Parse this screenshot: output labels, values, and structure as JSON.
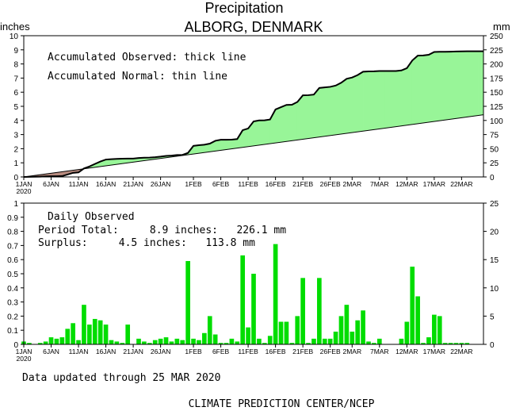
{
  "header": {
    "title": "Precipitation",
    "station": "ALBORG, DENMARK",
    "left_unit": "inches",
    "right_unit": "mm"
  },
  "colors": {
    "surplus": "#98f598",
    "deficit": "#b98c80",
    "bars": "#00dd00"
  },
  "chart_data": [
    {
      "type": "area",
      "panel": "accumulated",
      "annotations": [
        "Accumulated Observed: thick line",
        "Accumulated Normal: thin line"
      ],
      "ylabel": "inches",
      "y2label": "mm",
      "ylim": [
        0,
        10
      ],
      "y2lim": [
        0,
        250
      ],
      "yticks": [
        "0",
        "1",
        "2",
        "3",
        "4",
        "5",
        "6",
        "7",
        "8",
        "9",
        "10"
      ],
      "y2ticks": [
        "0",
        "25",
        "50",
        "75",
        "100",
        "125",
        "150",
        "175",
        "200",
        "225",
        "250"
      ],
      "x_day_range": [
        1,
        85
      ],
      "xticks": [
        "1JAN",
        "6JAN",
        "11JAN",
        "16JAN",
        "21JAN",
        "26JAN",
        "1FEB",
        "6FEB",
        "11FEB",
        "16FEB",
        "21FEB",
        "26FEB",
        "2MAR",
        "7MAR",
        "12MAR",
        "17MAR",
        "22MAR"
      ],
      "xtick_days": [
        1,
        6,
        11,
        16,
        21,
        26,
        32,
        37,
        42,
        47,
        52,
        57,
        61,
        66,
        71,
        76,
        81
      ],
      "year_label": "2020",
      "series": [
        {
          "name": "Accumulated Observed",
          "style": "thick",
          "points": [
            [
              1,
              0
            ],
            [
              2,
              0.01
            ],
            [
              4,
              0.02
            ],
            [
              5,
              0.04
            ],
            [
              6,
              0.05
            ],
            [
              7,
              0.05
            ],
            [
              8,
              0.06
            ],
            [
              9,
              0.17
            ],
            [
              10,
              0.29
            ],
            [
              11,
              0.32
            ],
            [
              12,
              0.6
            ],
            [
              13,
              0.74
            ],
            [
              14,
              0.92
            ],
            [
              15,
              1.09
            ],
            [
              16,
              1.23
            ],
            [
              17,
              1.26
            ],
            [
              18,
              1.28
            ],
            [
              19,
              1.29
            ],
            [
              20,
              1.3
            ],
            [
              21,
              1.3
            ],
            [
              22,
              1.34
            ],
            [
              23,
              1.36
            ],
            [
              24,
              1.37
            ],
            [
              25,
              1.4
            ],
            [
              26,
              1.44
            ],
            [
              27,
              1.49
            ],
            [
              28,
              1.51
            ],
            [
              29,
              1.55
            ],
            [
              30,
              1.56
            ],
            [
              31,
              1.7
            ],
            [
              32,
              2.2
            ],
            [
              33,
              2.25
            ],
            [
              34,
              2.28
            ],
            [
              35,
              2.36
            ],
            [
              36,
              2.56
            ],
            [
              37,
              2.63
            ],
            [
              38,
              2.63
            ],
            [
              39,
              2.64
            ],
            [
              40,
              2.68
            ],
            [
              41,
              3.31
            ],
            [
              42,
              3.43
            ],
            [
              43,
              3.93
            ],
            [
              44,
              4.0
            ],
            [
              45,
              4.01
            ],
            [
              46,
              4.07
            ],
            [
              47,
              4.78
            ],
            [
              48,
              4.94
            ],
            [
              49,
              5.1
            ],
            [
              50,
              5.11
            ],
            [
              51,
              5.31
            ],
            [
              52,
              5.78
            ],
            [
              53,
              5.79
            ],
            [
              54,
              5.83
            ],
            [
              55,
              6.3
            ],
            [
              56,
              6.34
            ],
            [
              57,
              6.38
            ],
            [
              58,
              6.47
            ],
            [
              59,
              6.67
            ],
            [
              60,
              6.95
            ],
            [
              61,
              7.04
            ],
            [
              62,
              7.21
            ],
            [
              63,
              7.45
            ],
            [
              64,
              7.47
            ],
            [
              65,
              7.48
            ],
            [
              66,
              7.5
            ],
            [
              67,
              7.5
            ],
            [
              68,
              7.5
            ],
            [
              69,
              7.5
            ],
            [
              70,
              7.54
            ],
            [
              71,
              7.7
            ],
            [
              72,
              8.25
            ],
            [
              73,
              8.59
            ],
            [
              74,
              8.6
            ],
            [
              75,
              8.65
            ],
            [
              76,
              8.85
            ],
            [
              77,
              8.86
            ],
            [
              78,
              8.86
            ],
            [
              79,
              8.87
            ],
            [
              80,
              8.88
            ],
            [
              81,
              8.89
            ],
            [
              82,
              8.9
            ],
            [
              83,
              8.9
            ],
            [
              84,
              8.9
            ],
            [
              85,
              8.9
            ]
          ]
        },
        {
          "name": "Accumulated Normal",
          "style": "thin",
          "points": [
            [
              1,
              0
            ],
            [
              85,
              4.4
            ]
          ]
        }
      ]
    },
    {
      "type": "bar",
      "panel": "daily",
      "annotations": [
        "Daily Observed",
        "Period Total:     8.9 inches:   226.1 mm",
        "Surplus:     4.5 inches:   113.8 mm"
      ],
      "ylabel": "inches",
      "y2label": "mm",
      "ylim": [
        0,
        1
      ],
      "y2lim": [
        0,
        25
      ],
      "yticks": [
        "0",
        "0.1",
        "0.2",
        "0.3",
        "0.4",
        "0.5",
        "0.6",
        "0.7",
        "0.8",
        "0.9",
        "1"
      ],
      "y2ticks": [
        "0",
        "5",
        "10",
        "15",
        "20",
        "25"
      ],
      "x_day_range": [
        1,
        85
      ],
      "days": [
        1,
        2,
        4,
        5,
        6,
        7,
        8,
        9,
        10,
        11,
        12,
        13,
        14,
        15,
        16,
        17,
        18,
        19,
        20,
        22,
        23,
        24,
        25,
        26,
        27,
        28,
        29,
        30,
        31,
        32,
        33,
        34,
        35,
        36,
        37,
        38,
        39,
        40,
        41,
        42,
        43,
        44,
        45,
        46,
        47,
        48,
        49,
        50,
        51,
        52,
        53,
        54,
        55,
        56,
        57,
        58,
        59,
        60,
        61,
        62,
        63,
        64,
        65,
        66,
        70,
        71,
        72,
        73,
        74,
        75,
        76,
        77,
        78,
        79,
        80,
        81,
        82
      ],
      "values": [
        0.02,
        0.01,
        0.01,
        0.02,
        0.05,
        0.04,
        0.05,
        0.11,
        0.15,
        0.03,
        0.28,
        0.14,
        0.18,
        0.17,
        0.14,
        0.03,
        0.02,
        0.01,
        0.14,
        0.04,
        0.02,
        0.01,
        0.03,
        0.04,
        0.05,
        0.02,
        0.04,
        0.03,
        0.59,
        0.04,
        0.03,
        0.08,
        0.2,
        0.07,
        0.01,
        0.01,
        0.04,
        0.02,
        0.63,
        0.12,
        0.5,
        0.04,
        0.01,
        0.06,
        0.71,
        0.16,
        0.16,
        0.01,
        0.2,
        0.47,
        0.01,
        0.04,
        0.47,
        0.04,
        0.04,
        0.09,
        0.2,
        0.28,
        0.09,
        0.17,
        0.24,
        0.02,
        0.01,
        0.04,
        0.04,
        0.16,
        0.55,
        0.34,
        0.01,
        0.05,
        0.21,
        0.2,
        0.01,
        0.01,
        0.01,
        0.01,
        0.01
      ]
    }
  ],
  "footer": {
    "updated": "Data updated through 25 MAR 2020",
    "credit": "CLIMATE PREDICTION CENTER/NCEP"
  }
}
